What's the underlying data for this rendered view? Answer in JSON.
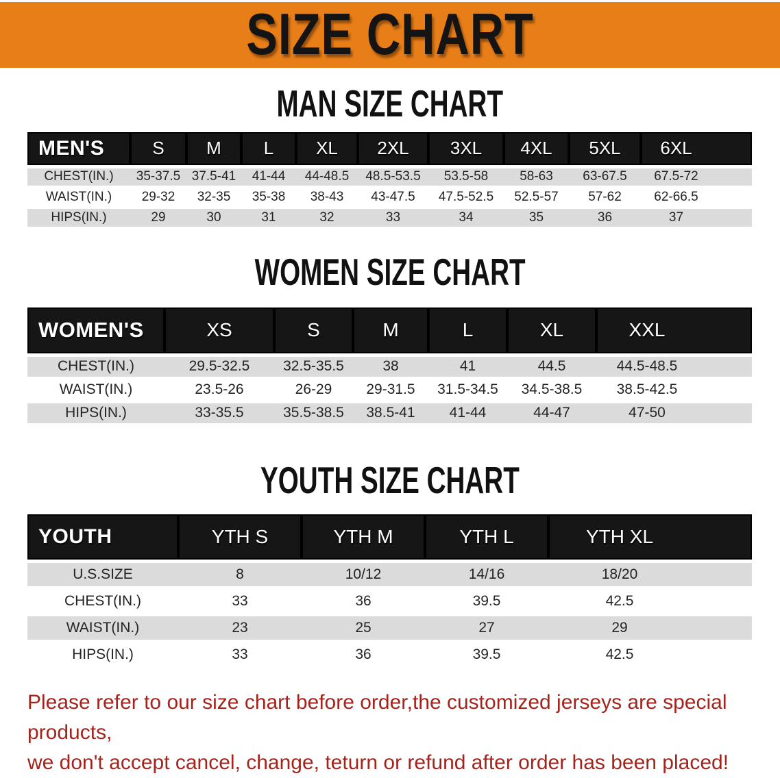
{
  "banner": {
    "title": "SIZE CHART"
  },
  "sections": [
    {
      "heading": "MAN SIZE CHART",
      "table": {
        "label": "MEN'S",
        "columns": [
          "S",
          "M",
          "L",
          "XL",
          "2XL",
          "3XL",
          "4XL",
          "5XL",
          "6XL"
        ],
        "rows": [
          {
            "label": "CHEST(IN.)",
            "values": [
              "35-37.5",
              "37.5-41",
              "41-44",
              "44-48.5",
              "48.5-53.5",
              "53.5-58",
              "58-63",
              "63-67.5",
              "67.5-72"
            ]
          },
          {
            "label": "WAIST(IN.)",
            "values": [
              "29-32",
              "32-35",
              "35-38",
              "38-43",
              "43-47.5",
              "47.5-52.5",
              "52.5-57",
              "57-62",
              "62-66.5"
            ]
          },
          {
            "label": "HIPS(IN.)",
            "values": [
              "29",
              "30",
              "31",
              "32",
              "33",
              "34",
              "35",
              "36",
              "37"
            ]
          }
        ]
      }
    },
    {
      "heading": "WOMEN SIZE CHART",
      "table": {
        "label": "WOMEN'S",
        "columns": [
          "XS",
          "S",
          "M",
          "L",
          "XL",
          "XXL"
        ],
        "rows": [
          {
            "label": "CHEST(IN.)",
            "values": [
              "29.5-32.5",
              "32.5-35.5",
              "38",
              "41",
              "44.5",
              "44.5-48.5"
            ]
          },
          {
            "label": "WAIST(IN.)",
            "values": [
              "23.5-26",
              "26-29",
              "29-31.5",
              "31.5-34.5",
              "34.5-38.5",
              "38.5-42.5"
            ]
          },
          {
            "label": "HIPS(IN.)",
            "values": [
              "33-35.5",
              "35.5-38.5",
              "38.5-41",
              "41-44",
              "44-47",
              "47-50"
            ]
          }
        ]
      }
    },
    {
      "heading": "YOUTH SIZE CHART",
      "table": {
        "label": "YOUTH",
        "columns": [
          "YTH S",
          "YTH M",
          "YTH L",
          "YTH XL"
        ],
        "rows": [
          {
            "label": "U.S.SIZE",
            "values": [
              "8",
              "10/12",
              "14/16",
              "18/20"
            ]
          },
          {
            "label": "CHEST(IN.)",
            "values": [
              "33",
              "36",
              "39.5",
              "42.5"
            ]
          },
          {
            "label": "WAIST(IN.)",
            "values": [
              "23",
              "25",
              "27",
              "29"
            ]
          },
          {
            "label": "HIPS(IN.)",
            "values": [
              "33",
              "36",
              "39.5",
              "42.5"
            ]
          }
        ]
      }
    }
  ],
  "disclaimer": {
    "line1": "Please refer to our size chart before order,the customized jerseys are special products,",
    "line2": "we don't accept cancel, change, teturn or refund after order has been placed!"
  },
  "colors": {
    "banner_bg": "#E87E17",
    "header_bg": "#161616",
    "row_alt": "#DBDBDB",
    "disclaimer": "#A3241D"
  }
}
